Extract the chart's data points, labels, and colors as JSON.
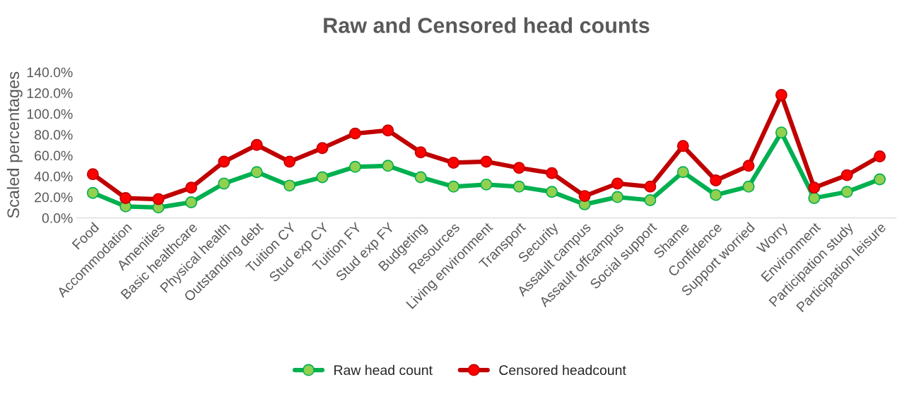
{
  "chart_data": {
    "type": "line",
    "title": "Raw and Censored head counts",
    "ylabel": "Scaled percentages",
    "categories": [
      "Food",
      "Accommodation",
      "Amenities",
      "Basic healthcare",
      "Physical health",
      "Outstanding debt",
      "Tuition CY",
      "Stud exp CY",
      "Tuition FY",
      "Stud exp FY",
      "Budgeting",
      "Resources",
      "Living environment",
      "Transport",
      "Security",
      "Assault campus",
      "Assault offcampus",
      "Social support",
      "Shame",
      "Confidence",
      "Support worried",
      "Worry",
      "Environment",
      "Participation study",
      "Participation leisure"
    ],
    "series": [
      {
        "name": "Raw head count",
        "color": "#00b050",
        "values": [
          24,
          11,
          10,
          15,
          33,
          44,
          31,
          39,
          49,
          50,
          39,
          30,
          32,
          30,
          25,
          13,
          20,
          17,
          44,
          22,
          30,
          82,
          19,
          25,
          37
        ]
      },
      {
        "name": "Censored headcount",
        "color": "#c00000",
        "values": [
          42,
          19,
          18,
          29,
          54,
          70,
          54,
          67,
          81,
          84,
          63,
          53,
          54,
          48,
          43,
          21,
          33,
          30,
          69,
          36,
          50,
          118,
          29,
          41,
          59
        ]
      }
    ],
    "ylim": [
      0,
      140
    ],
    "yticks": [
      {
        "value": 0,
        "label": "0.0%"
      },
      {
        "value": 20,
        "label": "20.0%"
      },
      {
        "value": 40,
        "label": "40.0%"
      },
      {
        "value": 60,
        "label": "60.0%"
      },
      {
        "value": 80,
        "label": "80.0%"
      },
      {
        "value": 100,
        "label": "100.0%"
      },
      {
        "value": 120,
        "label": "120.0%"
      },
      {
        "value": 140,
        "label": "140.0%"
      }
    ],
    "grid": false,
    "legend": "bottom",
    "marker": "circle",
    "line_style": "solid"
  }
}
